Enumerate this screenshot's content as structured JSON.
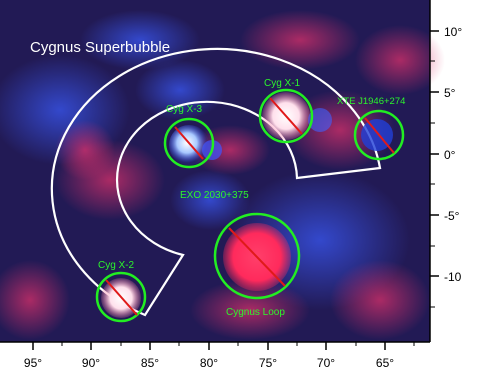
{
  "figure": {
    "title": "Cygnus Superbubble",
    "sources": [
      {
        "id": "cyg-x-3",
        "label": "Cyg X-3"
      },
      {
        "id": "cyg-x-1",
        "label": "Cyg X-1"
      },
      {
        "id": "xte-j1946",
        "label": "XTE J1946+274"
      },
      {
        "id": "exo-2030",
        "label": "EXO 2030+375"
      },
      {
        "id": "cyg-x-2",
        "label": "Cyg X-2"
      },
      {
        "id": "cygnus-loop",
        "label": "Cygnus Loop"
      }
    ],
    "x_axis": {
      "ticks": [
        "95°",
        "90°",
        "85°",
        "80°",
        "75°",
        "70°",
        "65°"
      ]
    },
    "y_axis": {
      "ticks": [
        "10°",
        "5°",
        "0°",
        "-5°",
        "-10"
      ]
    },
    "colors": {
      "background": "#221a55",
      "source_circle": "#22ee22",
      "source_line": "#e01a1a",
      "outline": "#ffffff",
      "label_text": "#2cf52c",
      "title_text": "#ffffff"
    }
  }
}
